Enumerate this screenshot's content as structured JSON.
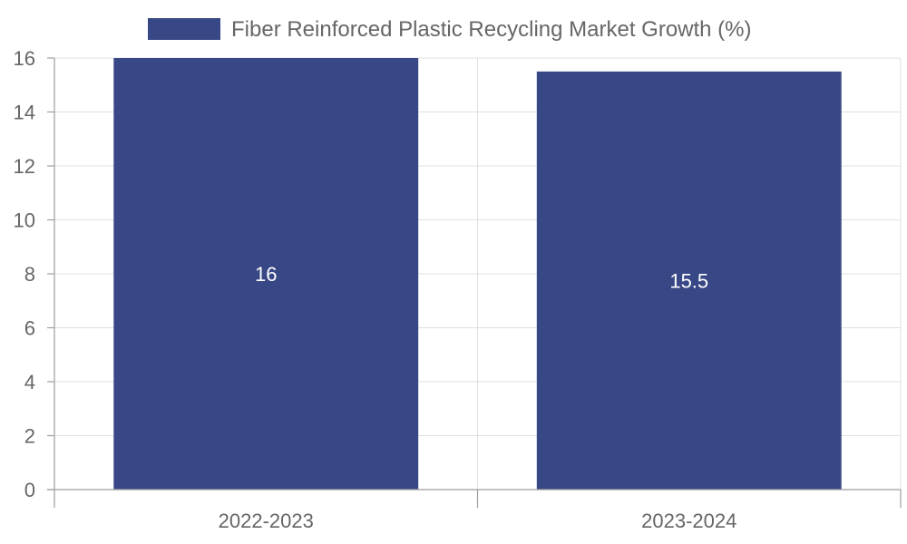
{
  "chart_data": {
    "type": "bar",
    "title": "",
    "xlabel": "",
    "ylabel": "",
    "categories": [
      "2022-2023",
      "2023-2024"
    ],
    "series": [
      {
        "name": "Fiber Reinforced Plastic Recycling Market Growth (%)",
        "values": [
          16,
          15.5
        ],
        "color": "#384785"
      }
    ],
    "ylim": [
      0,
      16
    ],
    "yticks": [
      0,
      2,
      4,
      6,
      8,
      10,
      12,
      14,
      16
    ],
    "data_labels": [
      "16",
      "15.5"
    ],
    "legend_position": "top",
    "grid": true
  }
}
